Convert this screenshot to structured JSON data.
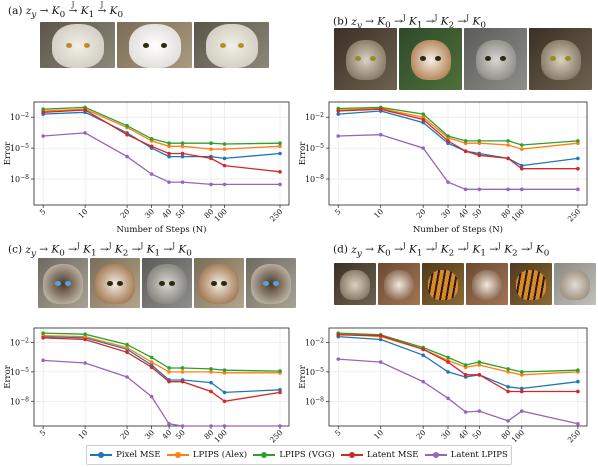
{
  "panels": [
    {
      "id": "a",
      "title": "(a) z_y → K_0 →^J K_1 →^J K_0"
    },
    {
      "id": "b",
      "title": "(b) z_y → K_0 →^J K_1 →^J K_2 →^J K_0"
    },
    {
      "id": "c",
      "title": "(c) z_y → K_0 →^J K_1 →^J K_2 →^J K_1 →^J K_0"
    },
    {
      "id": "d",
      "title": "(d) z_y → K_0 →^J K_1 →^J K_2 →^J K_1 →^J K_2 →^J K_0"
    }
  ],
  "images": {
    "a": [
      "white-cat-photo",
      "white-dog-photo",
      "white-cat-photo"
    ],
    "b": [
      "tabby-cat-photo",
      "collie-dog-photo",
      "snow-leopard-photo",
      "tabby-cat-photo"
    ],
    "c": [
      "siamese-cat-photo",
      "boxer-dog-photo",
      "snow-leopard-photo",
      "boxer-dog-photo",
      "siamese-cat-photo"
    ],
    "d": [
      "tabby-cat-photo",
      "dog-photo",
      "tiger-photo",
      "dog-photo",
      "tiger-photo",
      "cat-photo"
    ]
  },
  "legend": [
    {
      "name": "Pixel MSE",
      "color": "#1f77b4"
    },
    {
      "name": "LPIPS (Alex)",
      "color": "#ff7f0e"
    },
    {
      "name": "LPIPS (VGG)",
      "color": "#2ca02c"
    },
    {
      "name": "Latent MSE",
      "color": "#d62728"
    },
    {
      "name": "Latent LPIPS",
      "color": "#9467bd"
    }
  ],
  "chart_data": [
    {
      "panel": "a",
      "type": "line",
      "xscale": "log",
      "yscale": "log",
      "x": [
        5,
        10,
        20,
        30,
        40,
        50,
        80,
        100,
        250
      ],
      "xlabel": "Number of Steps (N)",
      "ylabel": "Error",
      "yticks": [
        "10^{-2}",
        "10^{-5}",
        "10^{-8}"
      ],
      "ylim": [
        3e-11,
        0.3
      ],
      "series": [
        {
          "name": "Pixel MSE",
          "color": "#1f77b4",
          "values": [
            0.02,
            0.03,
            0.0003,
            1e-05,
            1.5e-06,
            1.5e-06,
            1.5e-06,
            1e-06,
            3e-06
          ]
        },
        {
          "name": "LPIPS (Alex)",
          "color": "#ff7f0e",
          "values": [
            0.04,
            0.06,
            0.001,
            5e-05,
            1.5e-05,
            1.5e-05,
            8e-06,
            8e-06,
            1.5e-05
          ]
        },
        {
          "name": "LPIPS (VGG)",
          "color": "#2ca02c",
          "values": [
            0.06,
            0.09,
            0.0015,
            8e-05,
            3e-05,
            3e-05,
            3e-05,
            2.5e-05,
            3e-05
          ]
        },
        {
          "name": "Latent MSE",
          "color": "#d62728",
          "values": [
            0.03,
            0.05,
            0.0002,
            1.5e-05,
            3e-06,
            3e-06,
            1e-06,
            2e-07,
            5e-08
          ]
        },
        {
          "name": "Latent LPIPS",
          "color": "#9467bd",
          "values": [
            0.00015,
            0.0003,
            1.5e-06,
            3e-08,
            5e-09,
            5e-09,
            3e-09,
            3e-09,
            3e-09
          ]
        }
      ]
    },
    {
      "panel": "b",
      "type": "line",
      "xscale": "log",
      "yscale": "log",
      "x": [
        5,
        10,
        20,
        30,
        40,
        50,
        80,
        100,
        250
      ],
      "xlabel": "Number of Steps (N)",
      "ylabel": "Error",
      "yticks": [
        "10^{-2}",
        "10^{-5}",
        "10^{-8}"
      ],
      "ylim": [
        3e-11,
        0.3
      ],
      "series": [
        {
          "name": "Pixel MSE",
          "color": "#1f77b4",
          "values": [
            0.02,
            0.04,
            0.003,
            3e-05,
            5e-06,
            3e-06,
            1e-06,
            2e-07,
            1e-06
          ]
        },
        {
          "name": "LPIPS (Alex)",
          "color": "#ff7f0e",
          "values": [
            0.05,
            0.07,
            0.01,
            0.0001,
            3e-05,
            3e-05,
            2e-05,
            8e-06,
            3e-05
          ]
        },
        {
          "name": "LPIPS (VGG)",
          "color": "#2ca02c",
          "values": [
            0.07,
            0.09,
            0.02,
            0.00015,
            5e-05,
            5e-05,
            5e-05,
            2e-05,
            5e-05
          ]
        },
        {
          "name": "Latent MSE",
          "color": "#d62728",
          "values": [
            0.04,
            0.06,
            0.006,
            5e-05,
            5e-06,
            2e-06,
            1e-06,
            1e-07,
            1e-07
          ]
        },
        {
          "name": "Latent LPIPS",
          "color": "#9467bd",
          "values": [
            0.00015,
            0.0002,
            1e-05,
            5e-09,
            1e-09,
            1e-09,
            1e-09,
            1e-09,
            1e-09
          ]
        }
      ]
    },
    {
      "panel": "c",
      "type": "line",
      "xscale": "log",
      "yscale": "log",
      "x": [
        5,
        10,
        20,
        30,
        40,
        50,
        80,
        100,
        250
      ],
      "xlabel": "",
      "ylabel": "Error",
      "yticks": [
        "10^{-2}",
        "10^{-5}",
        "10^{-8}"
      ],
      "ylim": [
        3e-11,
        0.3
      ],
      "series": [
        {
          "name": "Pixel MSE",
          "color": "#1f77b4",
          "values": [
            0.04,
            0.03,
            0.002,
            5e-05,
            1.5e-06,
            1.5e-06,
            8e-07,
            8e-08,
            1.5e-07
          ]
        },
        {
          "name": "LPIPS (Alex)",
          "color": "#ff7f0e",
          "values": [
            0.05,
            0.04,
            0.003,
            0.0001,
            1e-05,
            1e-05,
            1e-05,
            8e-06,
            8e-06
          ]
        },
        {
          "name": "LPIPS (VGG)",
          "color": "#2ca02c",
          "values": [
            0.09,
            0.07,
            0.006,
            0.0003,
            2.5e-05,
            2.5e-05,
            2e-05,
            1.5e-05,
            1.2e-05
          ]
        },
        {
          "name": "Latent MSE",
          "color": "#d62728",
          "values": [
            0.03,
            0.02,
            0.001,
            3e-05,
            1e-06,
            1e-06,
            1e-07,
            1e-08,
            8e-08
          ]
        },
        {
          "name": "Latent LPIPS",
          "color": "#9467bd",
          "values": [
            0.00015,
            8e-05,
            3e-06,
            3e-08,
            5e-11,
            3e-11,
            3e-11,
            3e-11,
            3e-11
          ]
        }
      ]
    },
    {
      "panel": "d",
      "type": "line",
      "xscale": "log",
      "yscale": "log",
      "x": [
        5,
        10,
        20,
        30,
        40,
        50,
        80,
        100,
        250
      ],
      "xlabel": "",
      "ylabel": "Error",
      "yticks": [
        "10^{-2}",
        "10^{-5}",
        "10^{-8}"
      ],
      "ylim": [
        3e-11,
        0.3
      ],
      "series": [
        {
          "name": "Pixel MSE",
          "color": "#1f77b4",
          "values": [
            0.04,
            0.02,
            0.0005,
            1e-05,
            3e-06,
            5e-06,
            3e-07,
            2e-07,
            1e-06
          ]
        },
        {
          "name": "LPIPS (Alex)",
          "color": "#ff7f0e",
          "values": [
            0.07,
            0.04,
            0.002,
            0.00015,
            3e-05,
            5e-05,
            1e-05,
            5e-06,
            1e-05
          ]
        },
        {
          "name": "LPIPS (VGG)",
          "color": "#2ca02c",
          "values": [
            0.09,
            0.06,
            0.003,
            0.0003,
            5e-05,
            0.0001,
            2e-05,
            1e-05,
            1.5e-05
          ]
        },
        {
          "name": "Latent MSE",
          "color": "#d62728",
          "values": [
            0.06,
            0.05,
            0.002,
            0.0001,
            5e-06,
            5e-06,
            1e-07,
            1e-07,
            1e-07
          ]
        },
        {
          "name": "Latent LPIPS",
          "color": "#9467bd",
          "values": [
            0.0002,
            0.0001,
            1e-06,
            2e-08,
            8e-10,
            1e-09,
            1e-10,
            1e-09,
            5e-11
          ]
        }
      ]
    }
  ]
}
